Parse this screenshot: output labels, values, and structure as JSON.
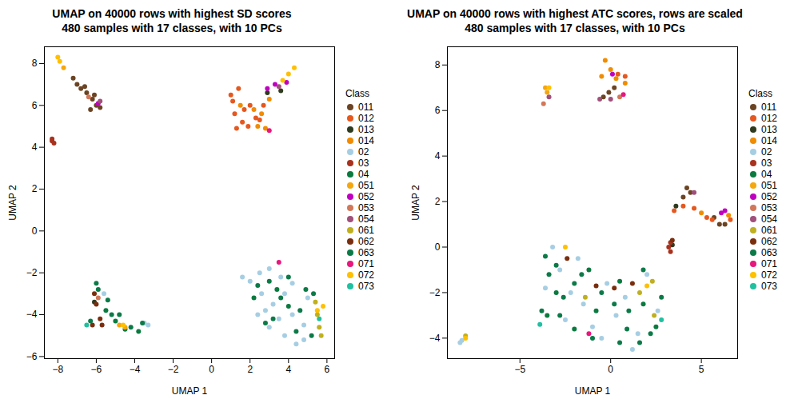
{
  "chart_data": [
    {
      "type": "scatter",
      "title": "UMAP on 40000 rows with highest SD scores",
      "subtitle": "480 samples with 17 classes, with 10 PCs",
      "x_label": "UMAP 1",
      "y_label": "UMAP 2",
      "xlim": [
        -8.7,
        6.4
      ],
      "xticks": [
        -8,
        -6,
        -4,
        -2,
        0,
        2,
        4,
        6
      ],
      "ylim": [
        -6.1,
        8.8
      ],
      "yticks": [
        -6,
        -4,
        -2,
        0,
        2,
        4,
        6,
        8
      ],
      "grid": false,
      "legend": "right",
      "legend_title": "Class",
      "series": [
        {
          "name": "011",
          "color": "#6B4423",
          "values": [
            [
              -7.0,
              7.0
            ],
            [
              -6.8,
              6.8
            ],
            [
              -6.5,
              6.6
            ],
            [
              -6.2,
              6.3
            ],
            [
              -6.0,
              6.0
            ],
            [
              -6.3,
              5.8
            ],
            [
              -5.8,
              5.9
            ],
            [
              -6.1,
              6.5
            ],
            [
              -7.2,
              7.3
            ],
            [
              -6.6,
              6.9
            ]
          ]
        },
        {
          "name": "012",
          "color": "#E5581F",
          "values": [
            [
              1.0,
              6.5
            ],
            [
              1.2,
              5.6
            ],
            [
              1.6,
              5.2
            ],
            [
              1.9,
              5.0
            ],
            [
              2.3,
              5.4
            ],
            [
              2.0,
              6.0
            ],
            [
              1.4,
              6.8
            ],
            [
              1.1,
              6.2
            ],
            [
              1.7,
              5.8
            ],
            [
              2.5,
              5.3
            ],
            [
              1.3,
              4.9
            ],
            [
              2.7,
              6.0
            ]
          ]
        },
        {
          "name": "013",
          "color": "#2E3B1F",
          "values": [
            [
              2.9,
              6.6
            ],
            [
              3.6,
              6.7
            ],
            [
              -6.1,
              -3.4
            ]
          ]
        },
        {
          "name": "014",
          "color": "#F08C00",
          "values": [
            [
              2.4,
              5.0
            ],
            [
              2.2,
              5.8
            ],
            [
              3.0,
              6.3
            ],
            [
              2.6,
              5.6
            ],
            [
              1.5,
              6.0
            ],
            [
              2.8,
              4.9
            ]
          ]
        },
        {
          "name": "02",
          "color": "#A6CEE3",
          "values": [
            [
              1.6,
              -2.2
            ],
            [
              2.0,
              -2.4
            ],
            [
              2.5,
              -2.0
            ],
            [
              3.0,
              -1.8
            ],
            [
              2.6,
              -3.0
            ],
            [
              3.2,
              -3.5
            ],
            [
              3.8,
              -3.0
            ],
            [
              4.2,
              -2.5
            ],
            [
              3.5,
              -4.2
            ],
            [
              3.0,
              -4.6
            ],
            [
              3.8,
              -5.0
            ],
            [
              4.4,
              -5.4
            ],
            [
              4.8,
              -4.5
            ],
            [
              4.2,
              -4.0
            ],
            [
              2.4,
              -4.0
            ],
            [
              5.0,
              -3.2
            ],
            [
              3.6,
              -2.2
            ],
            [
              4.8,
              -5.2
            ],
            [
              2.8,
              -3.8
            ],
            [
              -3.3,
              -4.5
            ],
            [
              -3.5,
              -4.4
            ],
            [
              -5.6,
              -3.0
            ]
          ]
        },
        {
          "name": "03",
          "color": "#A8321E",
          "values": [
            [
              -8.3,
              4.3
            ],
            [
              -8.2,
              4.2
            ],
            [
              -8.3,
              4.4
            ]
          ]
        },
        {
          "name": "04",
          "color": "#0A7A3F",
          "values": [
            [
              2.2,
              -3.2
            ],
            [
              3.4,
              -2.8
            ],
            [
              4.0,
              -3.6
            ],
            [
              -5.5,
              -3.8
            ],
            [
              -4.5,
              -4.7
            ],
            [
              -5.0,
              -4.3
            ],
            [
              -3.8,
              -4.8
            ]
          ]
        },
        {
          "name": "051",
          "color": "#F5A70E",
          "values": [
            [
              -7.7,
              7.8
            ],
            [
              -4.8,
              -4.5
            ],
            [
              -4.5,
              -4.6
            ]
          ]
        },
        {
          "name": "052",
          "color": "#C000C0",
          "values": [
            [
              -5.9,
              6.1
            ],
            [
              3.3,
              7.0
            ],
            [
              2.9,
              6.8
            ],
            [
              3.9,
              7.1
            ]
          ]
        },
        {
          "name": "053",
          "color": "#D2785A",
          "values": [
            [
              -6.4,
              6.4
            ],
            [
              -5.9,
              -3.2
            ]
          ]
        },
        {
          "name": "054",
          "color": "#A0507A",
          "values": [
            [
              3.5,
              6.9
            ],
            [
              -5.8,
              6.2
            ]
          ]
        },
        {
          "name": "061",
          "color": "#BFB020",
          "values": [
            [
              5.5,
              -4.0
            ],
            [
              5.7,
              -5.0
            ],
            [
              5.4,
              -3.4
            ],
            [
              5.6,
              -4.6
            ]
          ]
        },
        {
          "name": "062",
          "color": "#7A2E0E",
          "values": [
            [
              -6.0,
              -3.5
            ],
            [
              -6.2,
              -4.5
            ],
            [
              -5.8,
              -4.2
            ],
            [
              -6.1,
              -3.0
            ],
            [
              -5.7,
              -4.5
            ]
          ]
        },
        {
          "name": "063",
          "color": "#0C7A48",
          "values": [
            [
              -6.0,
              -2.5
            ],
            [
              -5.9,
              -2.8
            ],
            [
              -5.4,
              -3.3
            ],
            [
              -5.2,
              -4.0
            ],
            [
              -6.3,
              -4.3
            ],
            [
              -4.2,
              -4.6
            ],
            [
              -3.6,
              -4.4
            ],
            [
              -4.8,
              -4.0
            ],
            [
              2.4,
              -2.6
            ],
            [
              3.0,
              -2.4
            ],
            [
              3.6,
              -3.2
            ],
            [
              4.0,
              -2.2
            ],
            [
              4.6,
              -3.8
            ],
            [
              4.9,
              -2.8
            ],
            [
              5.3,
              -3.0
            ],
            [
              3.2,
              -4.2
            ],
            [
              4.4,
              -4.8
            ],
            [
              2.8,
              -4.4
            ],
            [
              5.2,
              -5.0
            ]
          ]
        },
        {
          "name": "071",
          "color": "#E8177E",
          "values": [
            [
              3.5,
              -1.5
            ],
            [
              3.0,
              4.8
            ]
          ]
        },
        {
          "name": "072",
          "color": "#FFC000",
          "values": [
            [
              -8.0,
              8.3
            ],
            [
              -7.9,
              8.1
            ],
            [
              4.0,
              7.5
            ],
            [
              4.3,
              7.8
            ],
            [
              3.7,
              7.2
            ],
            [
              5.5,
              -3.8
            ],
            [
              5.8,
              -3.6
            ],
            [
              -4.6,
              -4.5
            ]
          ]
        },
        {
          "name": "073",
          "color": "#20C0A0",
          "values": [
            [
              -6.5,
              -4.5
            ],
            [
              5.6,
              -4.2
            ]
          ]
        }
      ]
    },
    {
      "type": "scatter",
      "title": "UMAP on 40000 rows with highest ATC scores, rows are scaled",
      "subtitle": "480 samples with 17 classes, with 10 PCs",
      "x_label": "UMAP 1",
      "y_label": "UMAP 2",
      "xlim": [
        -9.0,
        7.0
      ],
      "xticks": [
        -5,
        0,
        5
      ],
      "ylim": [
        -4.9,
        8.8
      ],
      "yticks": [
        -4,
        -2,
        0,
        2,
        4,
        6,
        8
      ],
      "grid": false,
      "legend": "right",
      "legend_title": "Class",
      "series": [
        {
          "name": "011",
          "color": "#6B4423",
          "values": [
            [
              4.2,
              2.6
            ],
            [
              4.4,
              2.4
            ],
            [
              4.0,
              2.2
            ],
            [
              6.0,
              1.0
            ],
            [
              6.3,
              1.0
            ],
            [
              -0.4,
              6.6
            ],
            [
              -0.1,
              6.8
            ],
            [
              0.2,
              7.0
            ],
            [
              5.7,
              1.3
            ]
          ]
        },
        {
          "name": "012",
          "color": "#E5581F",
          "values": [
            [
              4.0,
              1.8
            ],
            [
              4.6,
              1.7
            ],
            [
              5.3,
              1.3
            ],
            [
              5.6,
              1.2
            ],
            [
              6.6,
              1.2
            ],
            [
              3.5,
              1.6
            ],
            [
              0.4,
              7.6
            ],
            [
              0.8,
              7.5
            ]
          ]
        },
        {
          "name": "013",
          "color": "#2E3B1F",
          "values": [
            [
              3.6,
              1.8
            ],
            [
              3.4,
              0.1
            ]
          ]
        },
        {
          "name": "014",
          "color": "#F08C00",
          "values": [
            [
              -0.3,
              8.2
            ],
            [
              0.0,
              7.8
            ],
            [
              0.3,
              7.4
            ],
            [
              0.8,
              7.2
            ],
            [
              -0.5,
              7.5
            ],
            [
              5.0,
              1.5
            ],
            [
              6.5,
              1.4
            ]
          ]
        },
        {
          "name": "02",
          "color": "#A6CEE3",
          "values": [
            [
              -3.2,
              0.0
            ],
            [
              -2.8,
              -1.0
            ],
            [
              -2.2,
              -2.0
            ],
            [
              -1.5,
              -2.5
            ],
            [
              -1.0,
              -3.5
            ],
            [
              -0.5,
              -4.0
            ],
            [
              0.3,
              -3.0
            ],
            [
              0.8,
              -2.2
            ],
            [
              1.5,
              -3.8
            ],
            [
              2.0,
              -1.2
            ],
            [
              -0.2,
              -1.6
            ],
            [
              -2.5,
              -3.2
            ],
            [
              1.2,
              -4.5
            ],
            [
              2.6,
              -2.8
            ],
            [
              -3.6,
              -1.8
            ],
            [
              -1.8,
              -0.5
            ],
            [
              -8.3,
              -4.2
            ],
            [
              -8.2,
              -4.1
            ]
          ]
        },
        {
          "name": "03",
          "color": "#A8321E",
          "values": [
            [
              3.3,
              0.2
            ],
            [
              3.2,
              0.0
            ],
            [
              3.3,
              -0.2
            ]
          ]
        },
        {
          "name": "04",
          "color": "#0A7A3F",
          "values": [
            [
              -3.0,
              -2.0
            ],
            [
              -2.0,
              -3.6
            ],
            [
              -0.8,
              -2.8
            ],
            [
              0.5,
              -1.5
            ],
            [
              1.8,
              -2.5
            ],
            [
              2.5,
              -3.5
            ],
            [
              -1.2,
              -1.0
            ],
            [
              -3.5,
              -3.0
            ]
          ]
        },
        {
          "name": "051",
          "color": "#F5A70E",
          "values": [
            [
              -3.6,
              7.0
            ],
            [
              -3.5,
              6.8
            ]
          ]
        },
        {
          "name": "052",
          "color": "#C000C0",
          "values": [
            [
              0.1,
              7.6
            ],
            [
              6.3,
              1.6
            ],
            [
              6.1,
              1.5
            ]
          ]
        },
        {
          "name": "053",
          "color": "#D2785A",
          "values": [
            [
              -3.7,
              6.3
            ],
            [
              0.5,
              6.6
            ]
          ]
        },
        {
          "name": "054",
          "color": "#A0507A",
          "values": [
            [
              -3.4,
              6.6
            ],
            [
              -0.6,
              6.5
            ],
            [
              0.0,
              6.5
            ],
            [
              4.6,
              2.4
            ]
          ]
        },
        {
          "name": "061",
          "color": "#BFB020",
          "values": [
            [
              -8.0,
              -3.9
            ],
            [
              2.3,
              -1.5
            ],
            [
              1.6,
              -2.0
            ],
            [
              -1.4,
              -2.2
            ],
            [
              2.4,
              -3.0
            ]
          ]
        },
        {
          "name": "062",
          "color": "#7A2E0E",
          "values": [
            [
              3.4,
              0.3
            ],
            [
              -2.4,
              -0.5
            ],
            [
              -0.8,
              -1.7
            ],
            [
              0.2,
              -1.8
            ],
            [
              1.2,
              -1.6
            ]
          ]
        },
        {
          "name": "063",
          "color": "#0C7A48",
          "values": [
            [
              -3.8,
              -2.8
            ],
            [
              -3.4,
              -1.2
            ],
            [
              -3.6,
              -0.4
            ],
            [
              -2.8,
              -3.0
            ],
            [
              -2.6,
              -2.2
            ],
            [
              -1.6,
              -1.2
            ],
            [
              -0.5,
              -2.0
            ],
            [
              0.2,
              -2.5
            ],
            [
              1.0,
              -2.8
            ],
            [
              1.6,
              -4.2
            ],
            [
              2.2,
              -3.8
            ],
            [
              2.8,
              -2.2
            ],
            [
              0.5,
              -4.2
            ],
            [
              -1.0,
              -4.0
            ],
            [
              -2.0,
              -1.6
            ],
            [
              1.8,
              -1.0
            ],
            [
              -3.0,
              -0.8
            ],
            [
              0.9,
              -3.6
            ]
          ]
        },
        {
          "name": "071",
          "color": "#E8177E",
          "values": [
            [
              -1.2,
              -3.8
            ],
            [
              0.7,
              6.7
            ]
          ]
        },
        {
          "name": "072",
          "color": "#FFC000",
          "values": [
            [
              -3.4,
              7.0
            ],
            [
              -2.5,
              0.0
            ],
            [
              2.0,
              -1.7
            ],
            [
              -8.0,
              -4.0
            ]
          ]
        },
        {
          "name": "073",
          "color": "#20C0A0",
          "values": [
            [
              2.8,
              -3.2
            ],
            [
              -3.9,
              -3.4
            ]
          ]
        }
      ]
    }
  ]
}
